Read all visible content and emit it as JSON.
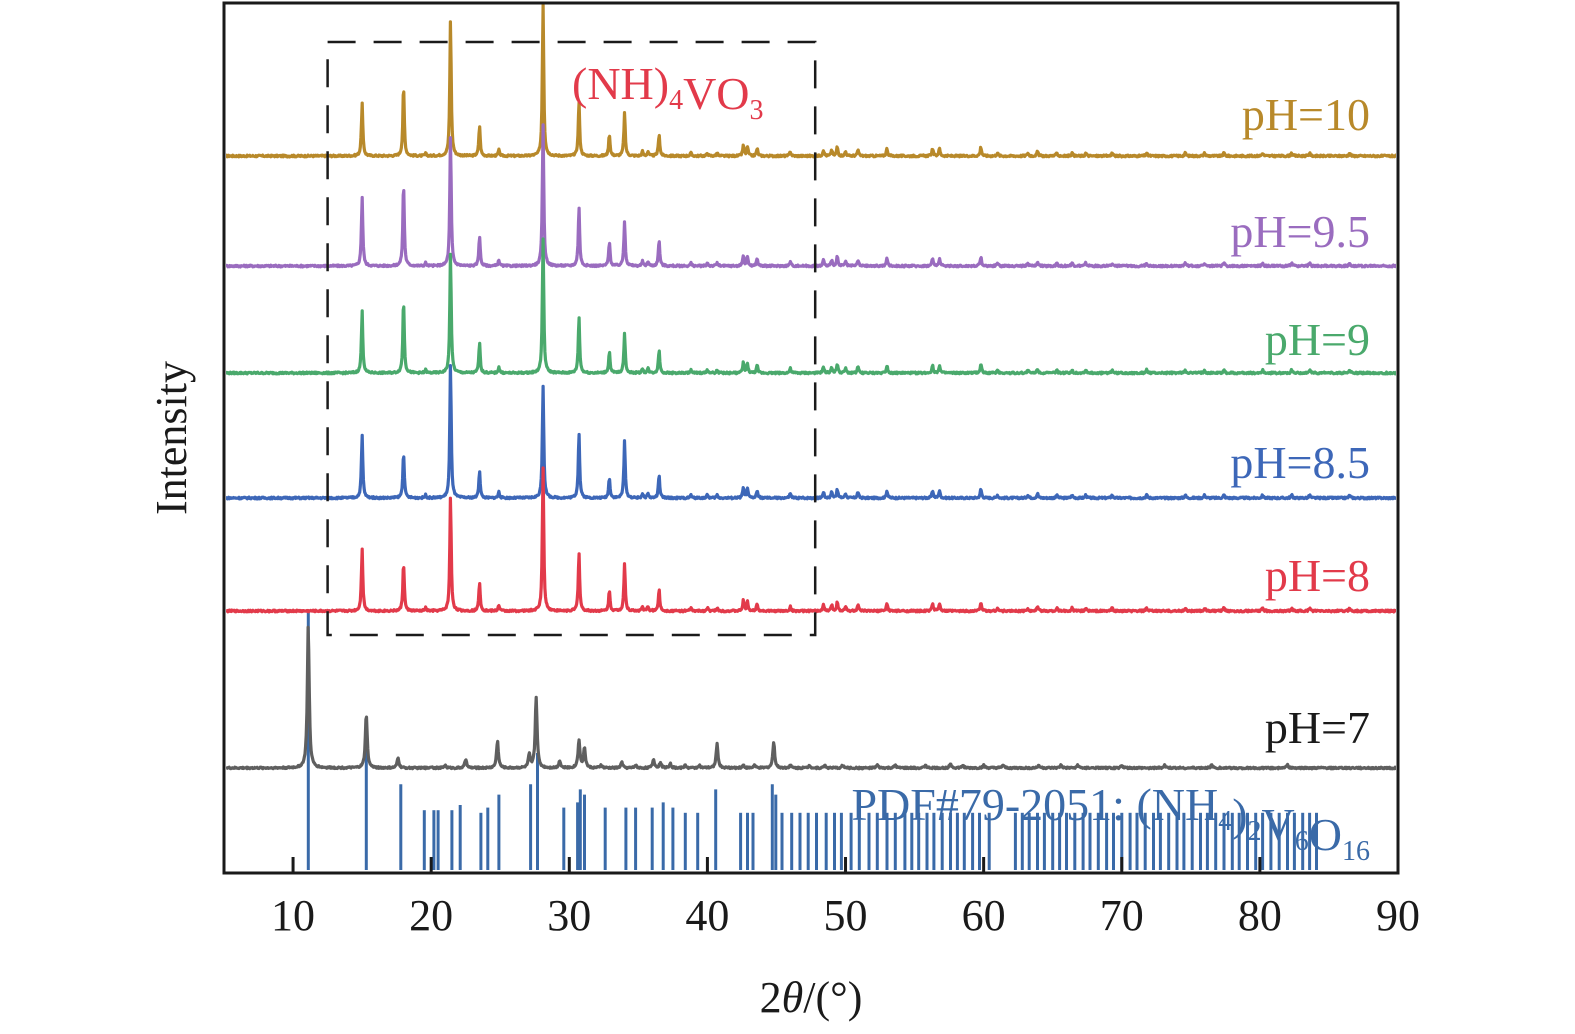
{
  "chart_data": {
    "type": "line",
    "title": "",
    "xlabel": "2θ/(°)",
    "xlabel_parts": {
      "prefix": "2",
      "theta": "θ",
      "suffix": "/(°)"
    },
    "ylabel": "Intensity",
    "xlim": [
      5,
      90
    ],
    "x_ticks": [
      10,
      20,
      30,
      40,
      50,
      60,
      70,
      80,
      90
    ],
    "x_tick_labels": [
      "10",
      "20",
      "30",
      "40",
      "50",
      "60",
      "70",
      "80",
      "90"
    ],
    "y_ticks": [],
    "grid": false,
    "stacked_offset": true,
    "legend": "inline-right",
    "annotation_box": {
      "label_parts": [
        {
          "text": "(NH)",
          "sub": false
        },
        {
          "text": "4",
          "sub": true
        },
        {
          "text": "VO",
          "sub": false
        },
        {
          "text": "3",
          "sub": true
        }
      ],
      "label": "(NH)4VO3",
      "x_range": [
        12.5,
        47.8
      ],
      "color": "#e23a4a",
      "style": "dashed"
    },
    "nh4vo3_peaks": [
      [
        15.0,
        0.42
      ],
      [
        18.0,
        0.48
      ],
      [
        19.6,
        0.02
      ],
      [
        21.4,
        0.66
      ],
      [
        23.5,
        0.2
      ],
      [
        24.9,
        0.04
      ],
      [
        28.1,
        0.72
      ],
      [
        30.7,
        0.42
      ],
      [
        32.9,
        0.16
      ],
      [
        34.0,
        0.3
      ],
      [
        35.3,
        0.03
      ],
      [
        35.7,
        0.03
      ],
      [
        36.5,
        0.18
      ],
      [
        38.8,
        0.02
      ],
      [
        40.0,
        0.02
      ],
      [
        40.7,
        0.02
      ],
      [
        42.6,
        0.07
      ],
      [
        42.9,
        0.06
      ],
      [
        43.6,
        0.05
      ],
      [
        46.0,
        0.03
      ],
      [
        48.4,
        0.04
      ],
      [
        49.0,
        0.04
      ],
      [
        49.4,
        0.06
      ],
      [
        50.0,
        0.03
      ],
      [
        50.9,
        0.04
      ],
      [
        53.0,
        0.05
      ],
      [
        56.3,
        0.05
      ],
      [
        56.8,
        0.05
      ],
      [
        59.8,
        0.06
      ],
      [
        61.0,
        0.02
      ],
      [
        63.2,
        0.02
      ],
      [
        63.9,
        0.03
      ],
      [
        65.3,
        0.02
      ],
      [
        66.4,
        0.02
      ],
      [
        67.4,
        0.02
      ],
      [
        69.3,
        0.02
      ],
      [
        71.8,
        0.02
      ],
      [
        74.6,
        0.02
      ],
      [
        76.0,
        0.02
      ],
      [
        77.4,
        0.02
      ],
      [
        80.2,
        0.02
      ],
      [
        82.3,
        0.02
      ],
      [
        83.6,
        0.02
      ],
      [
        86.5,
        0.02
      ]
    ],
    "series": [
      {
        "name": "pH=10",
        "label": "pH=10",
        "color": "#b8892a",
        "scale": [
          0.84,
          0.98,
          0.78,
          1.36,
          1.0,
          1.0,
          1.4,
          0.88,
          0.9,
          0.96,
          1,
          1,
          0.82
        ],
        "offset": 5
      },
      {
        "name": "pH=9.5",
        "label": "pH=9.5",
        "color": "#9a6cbf",
        "scale": [
          1.1,
          1.16,
          1.0,
          1.3,
          1.0,
          1.0,
          1.3,
          0.94,
          1.0,
          1.0,
          1,
          1,
          0.96
        ],
        "offset": 4
      },
      {
        "name": "pH=9",
        "label": "pH=9",
        "color": "#4aa96c",
        "scale": [
          0.98,
          1.02,
          1.0,
          1.2,
          1.0,
          1.0,
          1.24,
          0.9,
          0.88,
          0.88,
          1,
          1,
          0.86
        ],
        "offset": 3
      },
      {
        "name": "pH=8.5",
        "label": "pH=8.5",
        "color": "#3d67b8",
        "scale": [
          1.0,
          0.64,
          1.0,
          1.34,
          0.9,
          1.0,
          1.04,
          1.04,
          0.84,
          1.26,
          1,
          1,
          0.84
        ],
        "offset": 2
      },
      {
        "name": "pH=8",
        "label": "pH=8",
        "color": "#e23a4a",
        "scale": [
          1.0,
          0.68,
          1.0,
          1.14,
          0.96,
          1.0,
          1.32,
          0.94,
          0.84,
          1.06,
          1,
          1,
          0.8
        ],
        "offset": 1
      },
      {
        "name": "pH=7",
        "label": "pH=7",
        "color": "#5f5f5f",
        "label_color": "#1a1a1a",
        "offset": 0,
        "peaks": [
          [
            11.1,
            1.0
          ],
          [
            15.3,
            0.38
          ],
          [
            17.6,
            0.07
          ],
          [
            20.0,
            0.01
          ],
          [
            21.0,
            0.02
          ],
          [
            22.5,
            0.06
          ],
          [
            24.8,
            0.19
          ],
          [
            27.1,
            0.09
          ],
          [
            27.6,
            0.5
          ],
          [
            29.3,
            0.05
          ],
          [
            30.7,
            0.2
          ],
          [
            31.1,
            0.14
          ],
          [
            32.3,
            0.02
          ],
          [
            33.8,
            0.04
          ],
          [
            34.8,
            0.02
          ],
          [
            36.1,
            0.06
          ],
          [
            36.6,
            0.04
          ],
          [
            37.3,
            0.03
          ],
          [
            38.4,
            0.02
          ],
          [
            39.4,
            0.02
          ],
          [
            40.7,
            0.17
          ],
          [
            42.6,
            0.02
          ],
          [
            43.4,
            0.02
          ],
          [
            44.8,
            0.18
          ],
          [
            46.0,
            0.02
          ],
          [
            47.4,
            0.02
          ],
          [
            48.5,
            0.02
          ],
          [
            49.8,
            0.02
          ],
          [
            52.3,
            0.02
          ],
          [
            53.6,
            0.02
          ],
          [
            55.8,
            0.02
          ],
          [
            57.6,
            0.03
          ],
          [
            58.5,
            0.02
          ],
          [
            60.0,
            0.02
          ],
          [
            61.4,
            0.02
          ],
          [
            64.0,
            0.02
          ],
          [
            65.6,
            0.02
          ],
          [
            66.8,
            0.02
          ],
          [
            70.0,
            0.02
          ],
          [
            73.1,
            0.02
          ],
          [
            76.5,
            0.02
          ],
          [
            82.0,
            0.02
          ]
        ]
      }
    ],
    "reference": {
      "name": "PDF#79-2051",
      "label": "PDF#79-2051: (NH4)2V6O16",
      "label_parts": [
        {
          "text": "PDF#79-2051: (NH",
          "sub": false
        },
        {
          "text": "4",
          "sub": true
        },
        {
          "text": ")",
          "sub": false
        },
        {
          "text": "2",
          "sub": true
        },
        {
          "text": "V",
          "sub": false
        },
        {
          "text": "6",
          "sub": true
        },
        {
          "text": "O",
          "sub": false
        },
        {
          "text": "16",
          "sub": true
        }
      ],
      "color": "#3a6aa8",
      "type": "stick",
      "sticks": [
        [
          11.1,
          1.0
        ],
        [
          15.3,
          0.52
        ],
        [
          17.8,
          0.33
        ],
        [
          19.5,
          0.23
        ],
        [
          20.2,
          0.23
        ],
        [
          20.5,
          0.23
        ],
        [
          21.5,
          0.23
        ],
        [
          22.1,
          0.25
        ],
        [
          23.6,
          0.22
        ],
        [
          24.1,
          0.24
        ],
        [
          24.9,
          0.29
        ],
        [
          27.2,
          0.33
        ],
        [
          27.7,
          0.45
        ],
        [
          29.6,
          0.24
        ],
        [
          30.6,
          0.26
        ],
        [
          30.8,
          0.31
        ],
        [
          31.1,
          0.29
        ],
        [
          32.6,
          0.24
        ],
        [
          34.1,
          0.24
        ],
        [
          34.8,
          0.24
        ],
        [
          36.0,
          0.24
        ],
        [
          36.8,
          0.26
        ],
        [
          37.5,
          0.24
        ],
        [
          38.4,
          0.22
        ],
        [
          39.3,
          0.22
        ],
        [
          40.6,
          0.31
        ],
        [
          42.4,
          0.22
        ],
        [
          42.9,
          0.22
        ],
        [
          43.3,
          0.22
        ],
        [
          44.7,
          0.33
        ],
        [
          44.95,
          0.29
        ],
        [
          45.4,
          0.22
        ],
        [
          46.1,
          0.22
        ],
        [
          46.7,
          0.22
        ],
        [
          47.3,
          0.22
        ],
        [
          47.9,
          0.22
        ],
        [
          48.6,
          0.22
        ],
        [
          49.2,
          0.22
        ],
        [
          49.7,
          0.22
        ],
        [
          50.4,
          0.22
        ],
        [
          51.0,
          0.22
        ],
        [
          51.7,
          0.22
        ],
        [
          52.3,
          0.22
        ],
        [
          53.0,
          0.22
        ],
        [
          53.6,
          0.22
        ],
        [
          54.3,
          0.22
        ],
        [
          54.8,
          0.22
        ],
        [
          55.3,
          0.22
        ],
        [
          55.9,
          0.22
        ],
        [
          56.4,
          0.22
        ],
        [
          57.0,
          0.22
        ],
        [
          57.6,
          0.22
        ],
        [
          58.1,
          0.22
        ],
        [
          58.6,
          0.22
        ],
        [
          59.2,
          0.22
        ],
        [
          59.7,
          0.22
        ],
        [
          60.4,
          0.22
        ],
        [
          62.3,
          0.22
        ],
        [
          62.8,
          0.22
        ],
        [
          63.3,
          0.22
        ],
        [
          63.9,
          0.22
        ],
        [
          64.4,
          0.22
        ],
        [
          65.0,
          0.22
        ],
        [
          65.5,
          0.22
        ],
        [
          66.0,
          0.22
        ],
        [
          66.6,
          0.22
        ],
        [
          67.2,
          0.22
        ],
        [
          67.7,
          0.22
        ],
        [
          68.3,
          0.22
        ],
        [
          68.9,
          0.22
        ],
        [
          69.4,
          0.22
        ],
        [
          70.0,
          0.22
        ],
        [
          70.6,
          0.22
        ],
        [
          71.1,
          0.22
        ],
        [
          71.7,
          0.22
        ],
        [
          72.3,
          0.22
        ],
        [
          72.8,
          0.22
        ],
        [
          73.4,
          0.22
        ],
        [
          74.0,
          0.22
        ],
        [
          74.5,
          0.22
        ],
        [
          75.1,
          0.22
        ],
        [
          75.7,
          0.22
        ],
        [
          76.2,
          0.22
        ],
        [
          76.8,
          0.22
        ],
        [
          77.4,
          0.22
        ],
        [
          78.0,
          0.22
        ],
        [
          78.5,
          0.22
        ],
        [
          79.1,
          0.22
        ],
        [
          79.7,
          0.22
        ],
        [
          80.2,
          0.22
        ],
        [
          80.8,
          0.22
        ],
        [
          81.4,
          0.22
        ],
        [
          82.0,
          0.22
        ],
        [
          82.5,
          0.22
        ],
        [
          83.1,
          0.22
        ],
        [
          83.6,
          0.22
        ],
        [
          84.1,
          0.22
        ]
      ]
    }
  }
}
